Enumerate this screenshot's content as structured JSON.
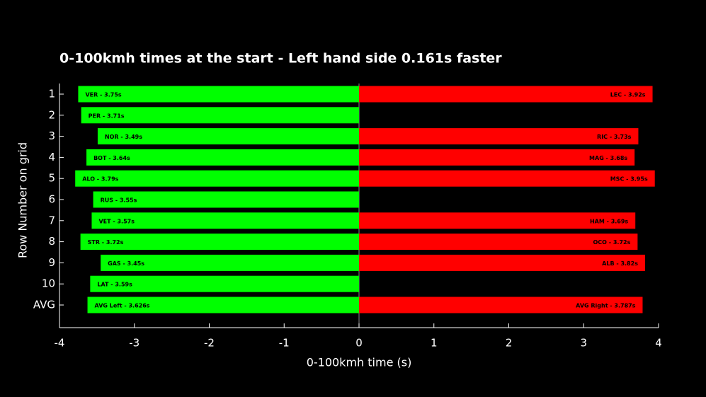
{
  "chart_data": {
    "type": "bar",
    "orientation": "horizontal",
    "title": "0-100kmh times at the start - Left hand side 0.161s faster",
    "x_label": "0-100kmh time (s)",
    "y_label": "Row Number on grid",
    "categories": [
      "1",
      "2",
      "3",
      "4",
      "5",
      "6",
      "7",
      "8",
      "9",
      "10",
      "AVG"
    ],
    "series": [
      {
        "color": "#00ff00",
        "values": [
          -3.75,
          -3.71,
          -3.49,
          -3.64,
          -3.79,
          -3.55,
          -3.57,
          -3.72,
          -3.45,
          -3.59,
          -3.626
        ],
        "value_labels": [
          "VER - 3.75s",
          "PER - 3.71s",
          "NOR - 3.49s",
          "BOT - 3.64s",
          "ALO - 3.79s",
          "RUS - 3.55s",
          "VET - 3.57s",
          "STR - 3.72s",
          "GAS - 3.45s",
          "LAT - 3.59s",
          "AVG Left - 3.626s"
        ]
      },
      {
        "color": "#ff0000",
        "values": [
          3.92,
          null,
          3.73,
          3.68,
          3.95,
          null,
          3.69,
          3.72,
          3.82,
          null,
          3.787
        ],
        "value_labels": [
          "LEC - 3.92s",
          null,
          "RIC - 3.73s",
          "MAG - 3.68s",
          "MSC - 3.95s",
          null,
          "HAM - 3.69s",
          "OCO - 3.72s",
          "ALB - 3.82s",
          null,
          "AVG Right - 3.787s"
        ]
      }
    ],
    "xlim": [
      -4,
      4
    ],
    "xticks": [
      -4,
      -3,
      -2,
      -1,
      0,
      1,
      2,
      3,
      4
    ]
  }
}
